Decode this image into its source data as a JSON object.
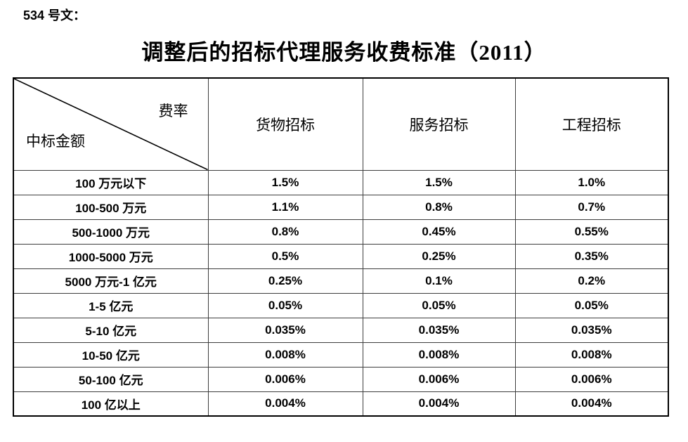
{
  "document": {
    "doc_label": "534 号文：",
    "title": "调整后的招标代理服务收费标准（2011）"
  },
  "colors": {
    "text": "#000000",
    "background": "#ffffff",
    "border_outer": "#000000",
    "border_inner": "#3d3d3d"
  },
  "table": {
    "corner": {
      "top_right": "费率",
      "bottom_left": "中标金额"
    },
    "columns": [
      "货物招标",
      "服务招标",
      "工程招标"
    ],
    "rows": [
      {
        "label": "100 万元以下",
        "values": [
          "1.5%",
          "1.5%",
          "1.0%"
        ]
      },
      {
        "label": "100-500 万元",
        "values": [
          "1.1%",
          "0.8%",
          "0.7%"
        ]
      },
      {
        "label": "500-1000 万元",
        "values": [
          "0.8%",
          "0.45%",
          "0.55%"
        ]
      },
      {
        "label": "1000-5000 万元",
        "values": [
          "0.5%",
          "0.25%",
          "0.35%"
        ]
      },
      {
        "label": "5000 万元-1 亿元",
        "values": [
          "0.25%",
          "0.1%",
          "0.2%"
        ]
      },
      {
        "label": "1-5 亿元",
        "values": [
          "0.05%",
          "0.05%",
          "0.05%"
        ]
      },
      {
        "label": "5-10 亿元",
        "values": [
          "0.035%",
          "0.035%",
          "0.035%"
        ]
      },
      {
        "label": "10-50 亿元",
        "values": [
          "0.008%",
          "0.008%",
          "0.008%"
        ]
      },
      {
        "label": "50-100 亿元",
        "values": [
          "0.006%",
          "0.006%",
          "0.006%"
        ]
      },
      {
        "label": "100 亿以上",
        "values": [
          "0.004%",
          "0.004%",
          "0.004%"
        ]
      }
    ]
  }
}
